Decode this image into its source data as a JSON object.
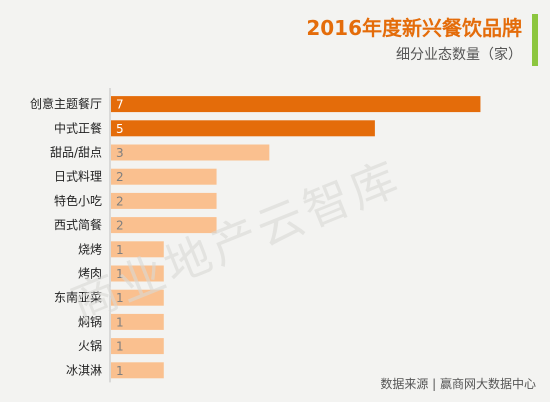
{
  "header": {
    "title": "2016年度新兴餐饮品牌",
    "subtitle": "细分业态数量（家）"
  },
  "watermark": "商业地产云智库",
  "source": "数据来源 | 赢商网大数据中心",
  "colors": {
    "dark_bar": "#e46c0a",
    "light_bar": "#fac08f",
    "accent": "#8cc63f",
    "axis": "#bfbfbf"
  },
  "chart_data": {
    "type": "bar",
    "orientation": "horizontal",
    "categories": [
      "创意主题餐厅",
      "中式正餐",
      "甜品/甜点",
      "日式料理",
      "特色小吃",
      "西式简餐",
      "烧烤",
      "烤肉",
      "东南亚菜",
      "焖锅",
      "火锅",
      "冰淇淋"
    ],
    "values": [
      7,
      5,
      3,
      2,
      2,
      2,
      1,
      1,
      1,
      1,
      1,
      1
    ],
    "xlim": [
      0,
      7.2
    ],
    "highlight_top": 2,
    "data_labels": true,
    "grid": false
  }
}
